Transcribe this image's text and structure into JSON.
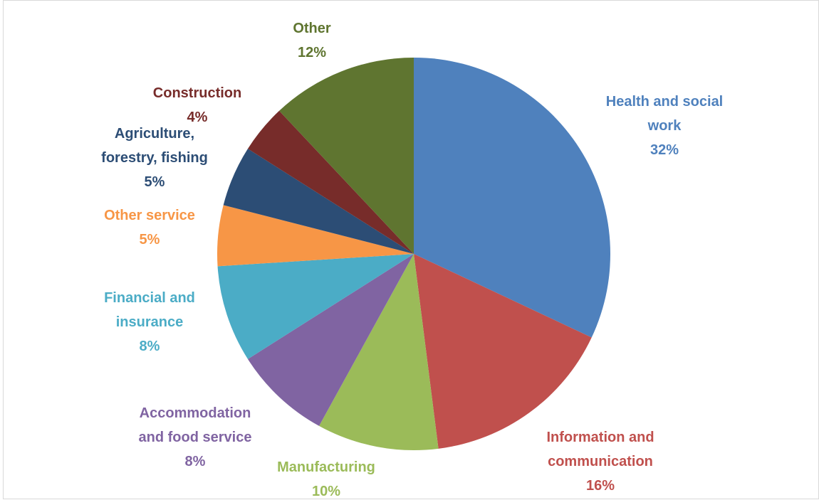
{
  "chart_data": {
    "type": "pie",
    "title": "",
    "slices": [
      {
        "label_lines": [
          "Health and social",
          "work"
        ],
        "percent_label": "32%",
        "value": 32,
        "color": "#4F81BD"
      },
      {
        "label_lines": [
          "Information and",
          "communication"
        ],
        "percent_label": "16%",
        "value": 16,
        "color": "#C0504D"
      },
      {
        "label_lines": [
          "Manufacturing"
        ],
        "percent_label": "10%",
        "value": 10,
        "color": "#9BBB59"
      },
      {
        "label_lines": [
          "Accommodation",
          "and food service"
        ],
        "percent_label": "8%",
        "value": 8,
        "color": "#8064A2"
      },
      {
        "label_lines": [
          "Financial and",
          "insurance"
        ],
        "percent_label": "8%",
        "value": 8,
        "color": "#4BACC6"
      },
      {
        "label_lines": [
          "Other service"
        ],
        "percent_label": "5%",
        "value": 5,
        "color": "#F79646"
      },
      {
        "label_lines": [
          "Agriculture,",
          "forestry, fishing"
        ],
        "percent_label": "5%",
        "value": 5,
        "color": "#2C4D75"
      },
      {
        "label_lines": [
          "Construction"
        ],
        "percent_label": "4%",
        "value": 4,
        "color": "#772C2A"
      },
      {
        "label_lines": [
          "Other"
        ],
        "percent_label": "12%",
        "value": 12,
        "color": "#5F7530"
      }
    ]
  }
}
